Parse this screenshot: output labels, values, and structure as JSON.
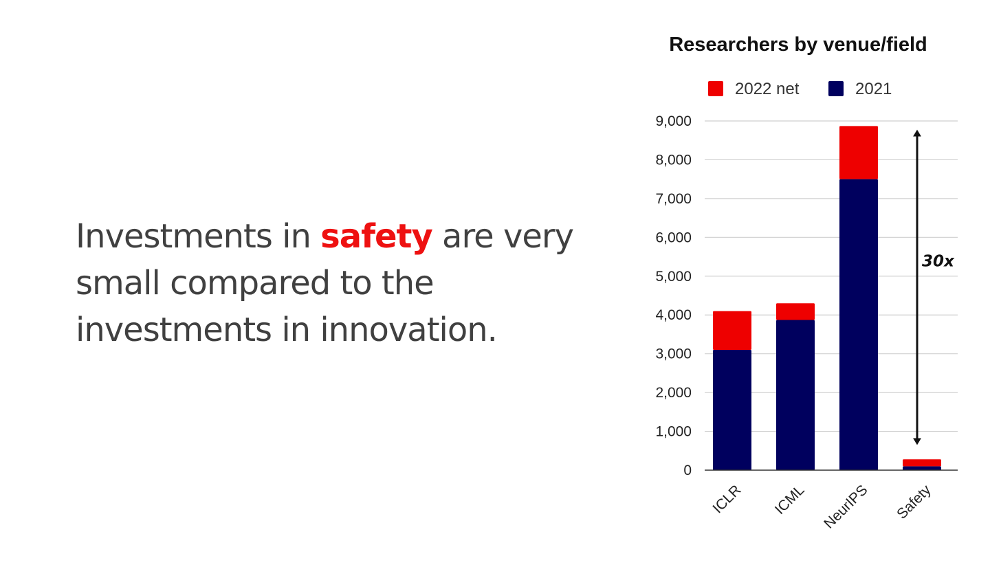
{
  "statement": {
    "before": "Investments in ",
    "highlight": "safety",
    "after": " are very small compared to the investments in innovation."
  },
  "colors": {
    "text": "#404040",
    "highlight": "#ee1111",
    "series_2022_net": "#ee0000",
    "series_2021": "#00005e",
    "grid": "#cfcfcf"
  },
  "chart_data": {
    "type": "bar",
    "stacked": true,
    "title": "Researchers by venue/field",
    "xlabel": "",
    "ylabel": "",
    "categories": [
      "ICLR",
      "ICML",
      "NeurIPS",
      "Safety"
    ],
    "series": [
      {
        "name": "2021",
        "values": [
          3100,
          3870,
          7500,
          100
        ],
        "color": "#00005e"
      },
      {
        "name": "2022 net",
        "values": [
          1000,
          430,
          1370,
          180
        ],
        "color": "#ee0000"
      }
    ],
    "legend_order": [
      "2022 net",
      "2021"
    ],
    "legend_position": "top",
    "ylim": [
      0,
      9000
    ],
    "yticks": [
      0,
      1000,
      2000,
      3000,
      4000,
      5000,
      6000,
      7000,
      8000,
      9000
    ],
    "ytick_labels": [
      "0",
      "1,000",
      "2,000",
      "3,000",
      "4,000",
      "5,000",
      "6,000",
      "7,000",
      "8,000",
      "9,000"
    ],
    "grid": true,
    "annotation": {
      "text": "30x",
      "from_value": 300,
      "to_value": 8900,
      "style": "double-arrow"
    }
  }
}
